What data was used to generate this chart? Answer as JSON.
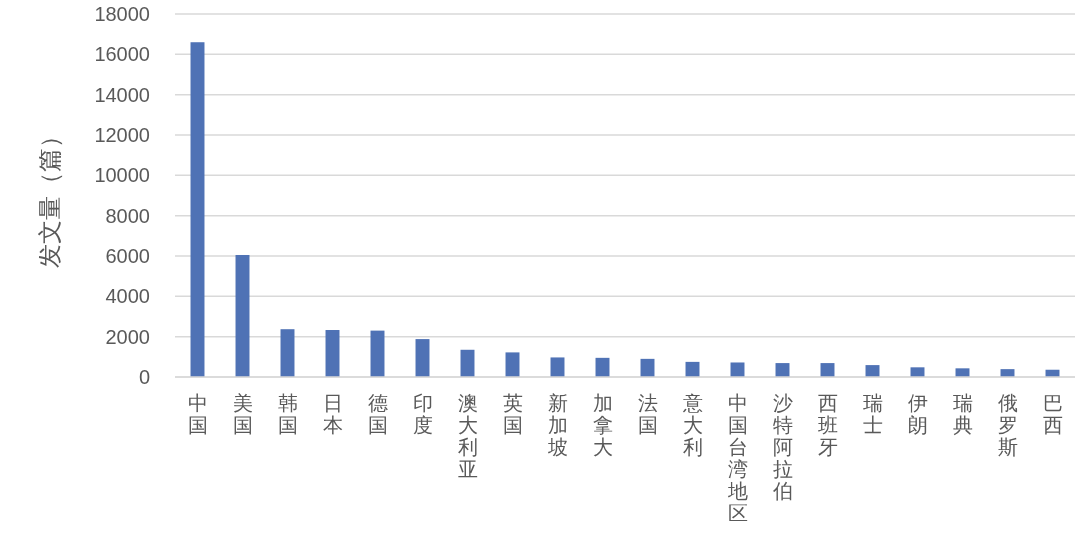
{
  "chart_data": {
    "type": "bar",
    "ylabel": "发文量（篇）",
    "categories": [
      "中国",
      "美国",
      "韩国",
      "日本",
      "德国",
      "印度",
      "澳大利亚",
      "英国",
      "新加坡",
      "加拿大",
      "法国",
      "意大利",
      "中国台湾地区",
      "沙特阿拉伯",
      "西班牙",
      "瑞士",
      "伊朗",
      "瑞典",
      "俄罗斯",
      "巴西"
    ],
    "values": [
      16600,
      6050,
      2370,
      2330,
      2300,
      1880,
      1350,
      1220,
      970,
      950,
      900,
      750,
      720,
      690,
      690,
      590,
      480,
      430,
      390,
      360
    ],
    "color": "#4f72b5",
    "ylim": [
      0,
      18000
    ],
    "yticks": [
      0,
      2000,
      4000,
      6000,
      8000,
      10000,
      12000,
      14000,
      16000,
      18000
    ],
    "grid": "y"
  }
}
